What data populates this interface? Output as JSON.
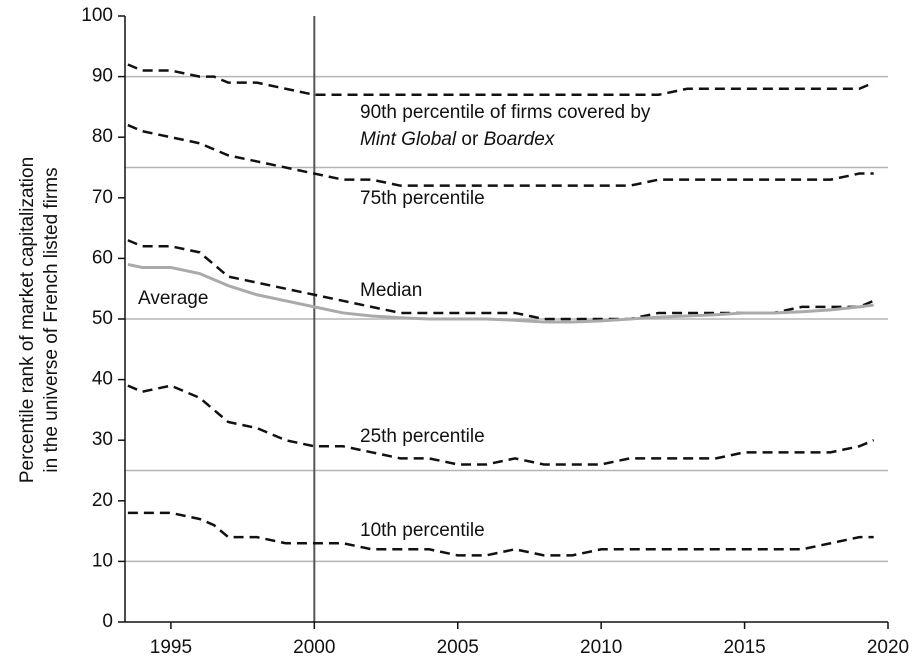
{
  "chart_data": {
    "type": "line",
    "y_label": [
      "Percentile rank of market capitalization",
      "in the universe of French listed firms"
    ],
    "xlim": [
      1993.4,
      2020
    ],
    "xticks": [
      1995,
      2000,
      2005,
      2010,
      2015,
      2020
    ],
    "ylim": [
      0,
      100
    ],
    "yticks": [
      0,
      10,
      20,
      30,
      40,
      50,
      60,
      70,
      80,
      90,
      100
    ],
    "hlines": [
      10,
      25,
      50,
      75,
      90
    ],
    "vline": 2000,
    "x": [
      1993.5,
      1994,
      1995,
      1996,
      1996.5,
      1997,
      1998,
      1999,
      2000,
      2001,
      2002,
      2003,
      2004,
      2005,
      2006,
      2007,
      2008,
      2009,
      2010,
      2011,
      2012,
      2013,
      2014,
      2015,
      2016,
      2017,
      2018,
      2019,
      2019.5
    ],
    "series": [
      {
        "name": [
          "90th percentile of firms covered by",
          "Mint Global",
          " or ",
          "Boardex"
        ],
        "color": "#111111",
        "dashed": true,
        "values": [
          92,
          91,
          91,
          90,
          90,
          89,
          89,
          88,
          87,
          87,
          87,
          87,
          87,
          87,
          87,
          87,
          87,
          87,
          87,
          87,
          87,
          88,
          88,
          88,
          88,
          88,
          88,
          88,
          89
        ]
      },
      {
        "name": "75th percentile",
        "color": "#111111",
        "dashed": true,
        "values": [
          82,
          81,
          80,
          79,
          78,
          77,
          76,
          75,
          74,
          73,
          73,
          72,
          72,
          72,
          72,
          72,
          72,
          72,
          72,
          72,
          73,
          73,
          73,
          73,
          73,
          73,
          73,
          74,
          74
        ]
      },
      {
        "name": "Median",
        "color": "#111111",
        "dashed": true,
        "values": [
          63,
          62,
          62,
          61,
          59,
          57,
          56,
          55,
          54,
          53,
          52,
          51,
          51,
          51,
          51,
          51,
          50,
          50,
          50,
          50,
          51,
          51,
          51,
          51,
          51,
          52,
          52,
          52,
          53
        ]
      },
      {
        "name": "Average",
        "color": "#aaaaaa",
        "dashed": false,
        "values": [
          59,
          58.5,
          58.5,
          57.5,
          56.5,
          55.5,
          54,
          53,
          52,
          51,
          50.5,
          50.2,
          50,
          50,
          50,
          49.8,
          49.5,
          49.5,
          49.7,
          50,
          50.3,
          50.5,
          50.7,
          51,
          51,
          51.2,
          51.5,
          52,
          52.3
        ]
      },
      {
        "name": "25th percentile",
        "color": "#111111",
        "dashed": true,
        "values": [
          39,
          38,
          39,
          37,
          35,
          33,
          32,
          30,
          29,
          29,
          28,
          27,
          27,
          26,
          26,
          27,
          26,
          26,
          26,
          27,
          27,
          27,
          27,
          28,
          28,
          28,
          28,
          29,
          30
        ]
      },
      {
        "name": "10th percentile",
        "color": "#111111",
        "dashed": true,
        "values": [
          18,
          18,
          18,
          17,
          16,
          14,
          14,
          13,
          13,
          13,
          12,
          12,
          12,
          11,
          11,
          12,
          11,
          11,
          12,
          12,
          12,
          12,
          12,
          12,
          12,
          12,
          13,
          14,
          14
        ]
      }
    ]
  }
}
